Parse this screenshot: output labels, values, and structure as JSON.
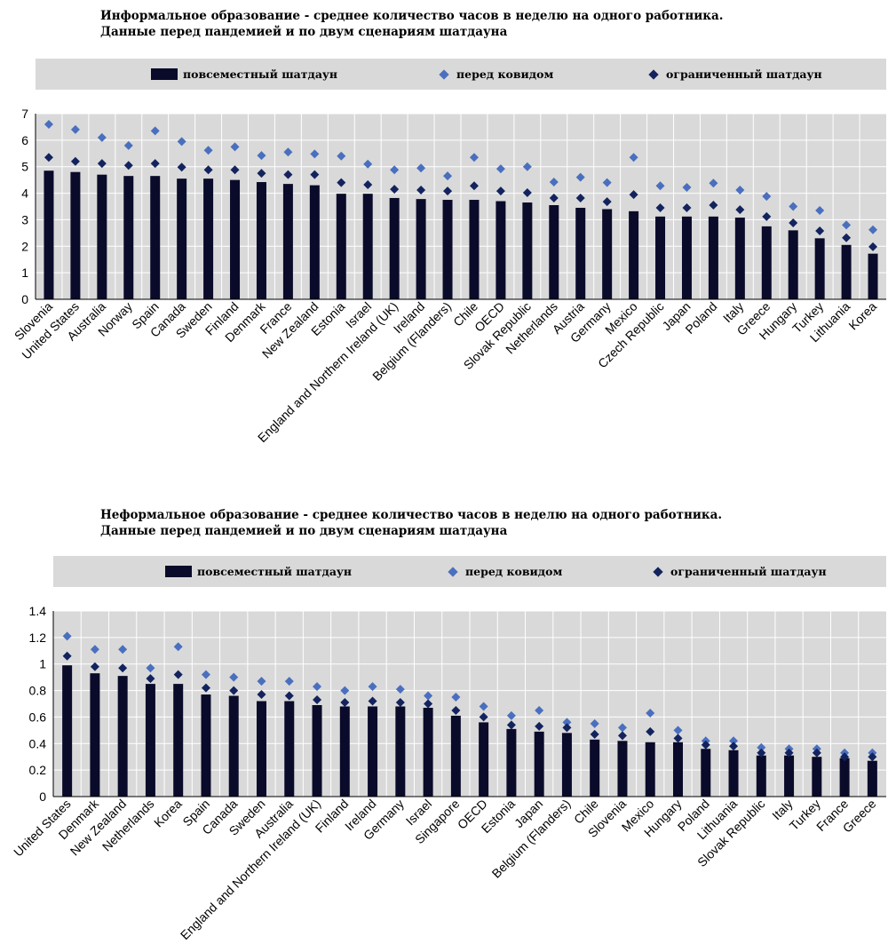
{
  "colors": {
    "bar": "#0a0a2a",
    "pre_covid": "#4a6fbe",
    "limited": "#13235e",
    "panel": "#d9d9d9",
    "grid": "#ffffff"
  },
  "charts_text": [
    {
      "title_line1": "Информальное образование - среднее количество часов в неделю на одного работника.",
      "title_line2": "Данные перед пандемией и по двум сценариям шатдауна",
      "legend": {
        "bars": "повсеместный шатдаун",
        "pre": "перед ковидом",
        "limited": "ограниченный шатдаун"
      }
    },
    {
      "title_line1": "Неформальное образование - среднее количество часов в неделю на одного работника.",
      "title_line2": "Данные перед пандемией и по двум сценариям шатдауна",
      "legend": {
        "bars": "повсеместный шатдаун",
        "pre": "перед ковидом",
        "limited": "ограниченный шатдаун"
      }
    }
  ],
  "chart_data": [
    {
      "type": "bar",
      "title": "Информальное образование - среднее количество часов в неделю на одного работника. Данные перед пандемией и по двум сценариям шатдауна",
      "ylim": [
        0,
        7
      ],
      "yticks": [
        "0",
        "1",
        "2",
        "3",
        "4",
        "5",
        "6",
        "7"
      ],
      "categories": [
        "Slovenia",
        "United States",
        "Australia",
        "Norway",
        "Spain",
        "Canada",
        "Sweden",
        "Finland",
        "Denmark",
        "France",
        "New Zealand",
        "Estonia",
        "Israel",
        "England and Northern Ireland (UK)",
        "Ireland",
        "Belgium (Flanders)",
        "Chile",
        "OECD",
        "Slovak Republic",
        "Netherlands",
        "Austria",
        "Germany",
        "Mexico",
        "Czech Republic",
        "Japan",
        "Poland",
        "Italy",
        "Greece",
        "Hungary",
        "Turkey",
        "Lithuania",
        "Korea"
      ],
      "series": [
        {
          "name": "повсеместный шатдаун",
          "kind": "bar",
          "values": [
            4.85,
            4.8,
            4.7,
            4.65,
            4.65,
            4.55,
            4.55,
            4.5,
            4.42,
            4.35,
            4.3,
            3.98,
            3.98,
            3.82,
            3.78,
            3.75,
            3.75,
            3.7,
            3.65,
            3.55,
            3.45,
            3.4,
            3.32,
            3.12,
            3.12,
            3.12,
            3.08,
            2.75,
            2.6,
            2.3,
            2.05,
            1.72
          ]
        },
        {
          "name": "перед ковидом",
          "kind": "diamond",
          "values": [
            6.6,
            6.4,
            6.1,
            5.8,
            6.35,
            5.95,
            5.62,
            5.75,
            5.42,
            5.55,
            5.48,
            5.4,
            5.1,
            4.88,
            4.95,
            4.65,
            5.35,
            4.92,
            5.0,
            4.42,
            4.6,
            4.4,
            5.35,
            4.28,
            4.22,
            4.38,
            4.12,
            3.88,
            3.5,
            3.35,
            2.8,
            2.62
          ]
        },
        {
          "name": "ограниченный шатдаун",
          "kind": "diamond",
          "values": [
            5.35,
            5.2,
            5.12,
            5.05,
            5.12,
            4.98,
            4.88,
            4.88,
            4.75,
            4.7,
            4.7,
            4.4,
            4.32,
            4.15,
            4.12,
            4.08,
            4.28,
            4.08,
            4.02,
            3.82,
            3.82,
            3.68,
            3.95,
            3.45,
            3.45,
            3.55,
            3.38,
            3.12,
            2.88,
            2.58,
            2.32,
            1.98
          ]
        }
      ]
    },
    {
      "type": "bar",
      "title": "Неформальное образование - среднее количество часов в неделю на одного работника. Данные перед пандемией и по двум сценариям шатдауна",
      "ylim": [
        0,
        1.4
      ],
      "yticks": [
        "0",
        "0.2",
        "0.4",
        "0.6",
        "0.8",
        "1",
        "1.2",
        "1.4"
      ],
      "categories": [
        "United States",
        "Denmark",
        "New Zealand",
        "Netherlands",
        "Korea",
        "Spain",
        "Canada",
        "Sweden",
        "Australia",
        "England and Northern Ireland (UK)",
        "Finland",
        "Ireland",
        "Germany",
        "Israel",
        "Singapore",
        "OECD",
        "Estonia",
        "Japan",
        "Belgium (Flanders)",
        "Chile",
        "Slovenia",
        "Mexico",
        "Hungary",
        "Poland",
        "Lithuania",
        "Slovak Republic",
        "Italy",
        "Turkey",
        "France",
        "Greece"
      ],
      "series": [
        {
          "name": "повсеместный шатдаун",
          "kind": "bar",
          "values": [
            0.99,
            0.93,
            0.91,
            0.85,
            0.85,
            0.77,
            0.76,
            0.72,
            0.72,
            0.69,
            0.68,
            0.68,
            0.68,
            0.67,
            0.61,
            0.56,
            0.51,
            0.49,
            0.48,
            0.43,
            0.42,
            0.41,
            0.41,
            0.36,
            0.35,
            0.31,
            0.31,
            0.3,
            0.29,
            0.27
          ]
        },
        {
          "name": "перед ковидом",
          "kind": "diamond",
          "values": [
            1.21,
            1.11,
            1.11,
            0.97,
            1.13,
            0.92,
            0.9,
            0.87,
            0.87,
            0.83,
            0.8,
            0.83,
            0.81,
            0.76,
            0.75,
            0.68,
            0.61,
            0.65,
            0.56,
            0.55,
            0.52,
            0.63,
            0.5,
            0.42,
            0.42,
            0.37,
            0.36,
            0.36,
            0.33,
            0.33
          ]
        },
        {
          "name": "ограниченный шатдаун",
          "kind": "diamond",
          "values": [
            1.06,
            0.98,
            0.97,
            0.89,
            0.92,
            0.82,
            0.8,
            0.77,
            0.76,
            0.73,
            0.71,
            0.72,
            0.71,
            0.7,
            0.65,
            0.6,
            0.54,
            0.53,
            0.52,
            0.47,
            0.46,
            0.49,
            0.44,
            0.39,
            0.38,
            0.33,
            0.33,
            0.33,
            0.3,
            0.3
          ]
        }
      ]
    }
  ]
}
